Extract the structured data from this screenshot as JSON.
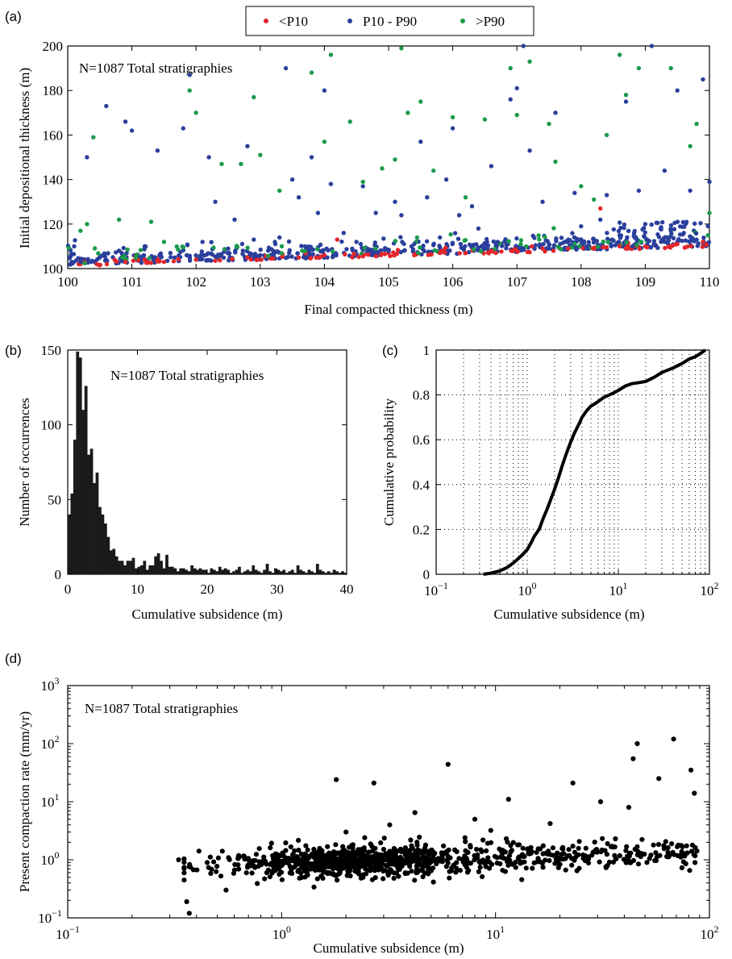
{
  "chart_data": [
    {
      "panel": "(a)",
      "type": "scatter",
      "annotation": "N=1087 Total stratigraphies",
      "xlabel": "Final compacted thickness (m)",
      "ylabel": "Initial depositional thickness (m)",
      "xlim": [
        100,
        110
      ],
      "ylim": [
        100,
        200
      ],
      "xticks": [
        100,
        101,
        102,
        103,
        104,
        105,
        106,
        107,
        108,
        109,
        110
      ],
      "yticks": [
        100,
        120,
        140,
        160,
        180,
        200
      ],
      "legend": "top-center",
      "series": [
        {
          "name": "<P10",
          "color": "#e3262a",
          "points": [
            [
              100.2,
              102
            ],
            [
              100.5,
              101.5
            ],
            [
              100.9,
              103
            ],
            [
              101.2,
              104
            ],
            [
              101.5,
              103
            ],
            [
              102.0,
              104
            ],
            [
              102.3,
              103.5
            ],
            [
              102.8,
              105
            ],
            [
              103.2,
              104.5
            ],
            [
              103.6,
              105
            ],
            [
              104.0,
              106
            ],
            [
              104.2,
              113
            ],
            [
              104.6,
              105.5
            ],
            [
              105.0,
              107
            ],
            [
              105.4,
              106
            ],
            [
              105.8,
              107
            ],
            [
              106.2,
              107
            ],
            [
              106.6,
              108
            ],
            [
              107.0,
              108
            ],
            [
              107.4,
              109
            ],
            [
              107.8,
              109
            ],
            [
              108.2,
              109
            ],
            [
              108.3,
              127
            ],
            [
              108.6,
              110
            ],
            [
              109.0,
              110
            ],
            [
              109.5,
              111
            ],
            [
              109.9,
              112
            ]
          ]
        },
        {
          "name": "P10 - P90",
          "color": "#2b3f9c",
          "points": [
            [
              100.1,
              110
            ],
            [
              100.2,
              103
            ],
            [
              100.3,
              150
            ],
            [
              100.5,
              105
            ],
            [
              100.6,
              173
            ],
            [
              100.8,
              108
            ],
            [
              100.9,
              166
            ],
            [
              101.0,
              162
            ],
            [
              101.2,
              110
            ],
            [
              101.4,
              153
            ],
            [
              101.6,
              107
            ],
            [
              101.8,
              163
            ],
            [
              101.9,
              187
            ],
            [
              102.1,
              112
            ],
            [
              102.2,
              150
            ],
            [
              102.3,
              130
            ],
            [
              102.5,
              109
            ],
            [
              102.6,
              122
            ],
            [
              102.8,
              155
            ],
            [
              102.9,
              113
            ],
            [
              103.0,
              106
            ],
            [
              103.3,
              114
            ],
            [
              103.4,
              190
            ],
            [
              103.5,
              140
            ],
            [
              103.6,
              132
            ],
            [
              103.7,
              110
            ],
            [
              103.8,
              150
            ],
            [
              103.9,
              125
            ],
            [
              104.0,
              180
            ],
            [
              104.1,
              138
            ],
            [
              104.3,
              116
            ],
            [
              104.5,
              112
            ],
            [
              104.6,
              137
            ],
            [
              104.8,
              125
            ],
            [
              105.0,
              108
            ],
            [
              105.1,
              130
            ],
            [
              105.2,
              124
            ],
            [
              105.4,
              111
            ],
            [
              105.5,
              157
            ],
            [
              105.6,
              132
            ],
            [
              105.8,
              114
            ],
            [
              105.9,
              140
            ],
            [
              106.0,
              163
            ],
            [
              106.1,
              124
            ],
            [
              106.3,
              128
            ],
            [
              106.4,
              118
            ],
            [
              106.6,
              146
            ],
            [
              106.7,
              112
            ],
            [
              106.9,
              176
            ],
            [
              107.0,
              181
            ],
            [
              107.1,
              200
            ],
            [
              107.2,
              153
            ],
            [
              107.4,
              130
            ],
            [
              107.5,
              111
            ],
            [
              107.6,
              170
            ],
            [
              107.8,
              113
            ],
            [
              107.9,
              134
            ],
            [
              108.0,
              119
            ],
            [
              108.1,
              109
            ],
            [
              108.3,
              122
            ],
            [
              108.4,
              133
            ],
            [
              108.6,
              115
            ],
            [
              108.7,
              175
            ],
            [
              108.8,
              110
            ],
            [
              108.9,
              135
            ],
            [
              109.0,
              120
            ],
            [
              109.1,
              200
            ],
            [
              109.3,
              144
            ],
            [
              109.4,
              117
            ],
            [
              109.5,
              180
            ],
            [
              109.6,
              116
            ],
            [
              109.7,
              135
            ],
            [
              109.8,
              113
            ],
            [
              109.9,
              185
            ],
            [
              110.0,
              139
            ]
          ]
        },
        {
          "name": ">P90",
          "color": "#1a9a4a",
          "points": [
            [
              100.2,
              117
            ],
            [
              100.3,
              120
            ],
            [
              100.4,
              159
            ],
            [
              100.8,
              122
            ],
            [
              101.3,
              121
            ],
            [
              101.5,
              112
            ],
            [
              101.9,
              180
            ],
            [
              102.0,
              170
            ],
            [
              102.4,
              147
            ],
            [
              102.7,
              147
            ],
            [
              102.9,
              177
            ],
            [
              103.0,
              151
            ],
            [
              103.3,
              135
            ],
            [
              103.8,
              188
            ],
            [
              104.0,
              157
            ],
            [
              104.1,
              196
            ],
            [
              104.4,
              166
            ],
            [
              104.6,
              139
            ],
            [
              104.9,
              145
            ],
            [
              105.1,
              149
            ],
            [
              105.2,
              199
            ],
            [
              105.3,
              170
            ],
            [
              105.5,
              175
            ],
            [
              105.7,
              144
            ],
            [
              106.0,
              168
            ],
            [
              106.2,
              132
            ],
            [
              106.5,
              167
            ],
            [
              106.9,
              190
            ],
            [
              107.0,
              169
            ],
            [
              107.2,
              193
            ],
            [
              107.5,
              165
            ],
            [
              107.6,
              148
            ],
            [
              108.0,
              137
            ],
            [
              108.2,
              131
            ],
            [
              108.4,
              160
            ],
            [
              108.6,
              196
            ],
            [
              108.7,
              178
            ],
            [
              108.9,
              190
            ],
            [
              109.4,
              190
            ],
            [
              109.7,
              155
            ],
            [
              109.8,
              165
            ],
            [
              110.0,
              125
            ]
          ]
        }
      ]
    },
    {
      "panel": "(b)",
      "type": "bar",
      "annotation": "N=1087 Total stratigraphies",
      "xlabel": "Cumulative subsidence (m)",
      "ylabel": "Number of occurrences",
      "xlim": [
        0,
        40
      ],
      "ylim": [
        0,
        150
      ],
      "xticks": [
        0,
        10,
        20,
        30,
        40
      ],
      "yticks": [
        0,
        50,
        100,
        150
      ],
      "bin_width": 0.4,
      "counts": [
        40,
        54,
        90,
        149,
        145,
        110,
        126,
        80,
        84,
        61,
        68,
        45,
        40,
        34,
        25,
        16,
        17,
        12,
        9,
        9,
        6,
        9,
        9,
        11,
        4,
        5,
        6,
        9,
        3,
        6,
        6,
        12,
        14,
        9,
        4,
        13,
        5,
        5,
        4,
        2,
        4,
        4,
        3,
        2,
        6,
        4,
        3,
        4,
        3,
        3,
        1,
        4,
        3,
        2,
        5,
        3,
        4,
        3,
        1,
        2,
        3,
        5,
        1,
        2,
        3,
        2,
        6,
        3,
        2,
        1,
        3,
        7,
        2,
        1,
        4,
        3,
        2,
        3,
        1,
        2,
        3,
        1,
        6,
        3,
        2,
        1,
        3,
        2,
        1,
        7,
        3,
        2,
        1,
        2,
        1,
        3,
        2,
        1,
        2,
        1
      ]
    },
    {
      "panel": "(c)",
      "type": "line",
      "xlabel": "Cumulative subsidence (m)",
      "ylabel": "Cumulative probability",
      "xscale": "log",
      "xlim": [
        0.1,
        100
      ],
      "ylim": [
        0,
        1
      ],
      "xtick_labels": [
        "10−1",
        "100",
        "101",
        "102"
      ],
      "yticks": [
        0,
        0.2,
        0.4,
        0.6,
        0.8,
        1
      ],
      "grid": true,
      "x": [
        0.33,
        0.4,
        0.5,
        0.6,
        0.7,
        0.8,
        0.9,
        1.0,
        1.1,
        1.2,
        1.35,
        1.5,
        1.65,
        1.8,
        2.0,
        2.2,
        2.4,
        2.7,
        3.0,
        3.3,
        3.7,
        4.0,
        4.5,
        5.0,
        5.5,
        6.0,
        7.0,
        8.0,
        9.0,
        10,
        12,
        14,
        17,
        20,
        25,
        30,
        40,
        50,
        60,
        70,
        80,
        90
      ],
      "y": [
        0,
        0.005,
        0.015,
        0.03,
        0.05,
        0.07,
        0.09,
        0.11,
        0.14,
        0.17,
        0.2,
        0.25,
        0.29,
        0.33,
        0.38,
        0.43,
        0.48,
        0.54,
        0.59,
        0.63,
        0.67,
        0.7,
        0.73,
        0.75,
        0.76,
        0.77,
        0.79,
        0.8,
        0.81,
        0.82,
        0.84,
        0.85,
        0.855,
        0.86,
        0.88,
        0.9,
        0.92,
        0.94,
        0.96,
        0.97,
        0.985,
        1.0
      ]
    },
    {
      "panel": "(d)",
      "type": "scatter",
      "annotation": "N=1087 Total stratigraphies",
      "xlabel": "Cumulative subsidence (m)",
      "ylabel": "Present compaction rate (mm/yr)",
      "xscale": "log",
      "yscale": "log",
      "xlim": [
        0.1,
        100
      ],
      "ylim": [
        0.1,
        1000
      ],
      "xtick_labels": [
        "10−1",
        "100",
        "101",
        "102"
      ],
      "ytick_labels": [
        "10−1",
        "100",
        "101",
        "102",
        "103"
      ],
      "outliers": [
        [
          0.33,
          1.0
        ],
        [
          0.36,
          0.19
        ],
        [
          0.37,
          0.12
        ],
        [
          0.55,
          0.3
        ],
        [
          1.8,
          24
        ],
        [
          2.7,
          21
        ],
        [
          6.0,
          44
        ],
        [
          8.0,
          5.0
        ],
        [
          4.2,
          6.5
        ],
        [
          11.5,
          11
        ],
        [
          23,
          21
        ],
        [
          44,
          55
        ],
        [
          46,
          100
        ],
        [
          68,
          120
        ],
        [
          82,
          35
        ],
        [
          85,
          14
        ],
        [
          58,
          25
        ],
        [
          42,
          8
        ],
        [
          31,
          10
        ],
        [
          18,
          4.2
        ],
        [
          2.0,
          3.0
        ],
        [
          3.2,
          4.0
        ],
        [
          9.5,
          3.2
        ],
        [
          7.2,
          2.4
        ]
      ]
    }
  ]
}
